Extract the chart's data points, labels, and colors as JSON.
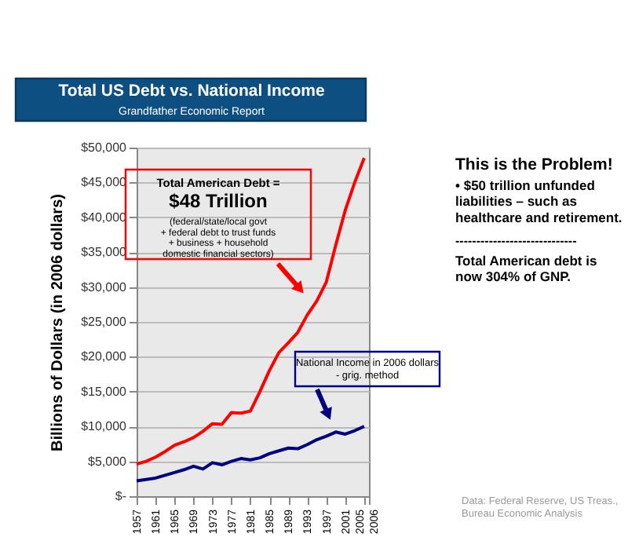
{
  "chart_data": {
    "type": "line",
    "title": "Total US Debt vs. National Income",
    "subtitle": "Grandfather Economic Report",
    "ylabel": "Billions of Dollars (in 2006 dollars)",
    "x": [
      1957,
      1959,
      1961,
      1963,
      1965,
      1967,
      1969,
      1971,
      1973,
      1975,
      1977,
      1979,
      1981,
      1983,
      1985,
      1987,
      1989,
      1991,
      1993,
      1995,
      1997,
      1999,
      2001,
      2003,
      2005
    ],
    "series": [
      {
        "color": "#ff0000",
        "values": [
          4600,
          5000,
          5600,
          6400,
          7300,
          7800,
          8400,
          9300,
          10400,
          10300,
          12000,
          11900,
          12200,
          15000,
          18000,
          20600,
          22000,
          23500,
          26000,
          28000,
          30700,
          36000,
          41000,
          45000,
          48500
        ]
      },
      {
        "color": "#000080",
        "values": [
          2200,
          2400,
          2600,
          3000,
          3400,
          3800,
          4300,
          3900,
          4800,
          4500,
          5000,
          5400,
          5200,
          5500,
          6100,
          6500,
          6900,
          6800,
          7400,
          8100,
          8600,
          9200,
          8900,
          9400,
          10000
        ]
      }
    ],
    "xlim": [
      1957,
      2006
    ],
    "xticks": [
      1957,
      1961,
      1965,
      1969,
      1973,
      1977,
      1981,
      1985,
      1989,
      1993,
      1997,
      2001,
      2005,
      2006
    ],
    "ylim": [
      0,
      50000
    ],
    "yticks": [
      {
        "value": 0,
        "label": "$-"
      },
      {
        "value": 5000,
        "label": "$5,000"
      },
      {
        "value": 10000,
        "label": "$10,000"
      },
      {
        "value": 15000,
        "label": "$15,000"
      },
      {
        "value": 20000,
        "label": "$20,000"
      },
      {
        "value": 25000,
        "label": "$25,000"
      },
      {
        "value": 30000,
        "label": "$30,000"
      },
      {
        "value": 35000,
        "label": "$35,000"
      },
      {
        "value": 40000,
        "label": "$40,000"
      },
      {
        "value": 45000,
        "label": "$45,000"
      },
      {
        "value": 50000,
        "label": "$50,000"
      }
    ],
    "grid": "y",
    "annotations": [
      "This is the Problem!",
      "• $50 trillion unfunded\nliabilities – such as\nhealthcare and retirement.",
      "-----------------------------",
      "Total American debt is\nnow 304% of GNP.",
      "Total American Debt =",
      "$48 Trillion",
      "(federal/state/local govt\n+ federal debt to trust funds\n+ business + household\ndomestic financial sectors)",
      "National Income in 2006 dollars\n- grig. method",
      "Data: Federal Reserve, US Treas.,\nBureau Economic Analysis"
    ]
  }
}
